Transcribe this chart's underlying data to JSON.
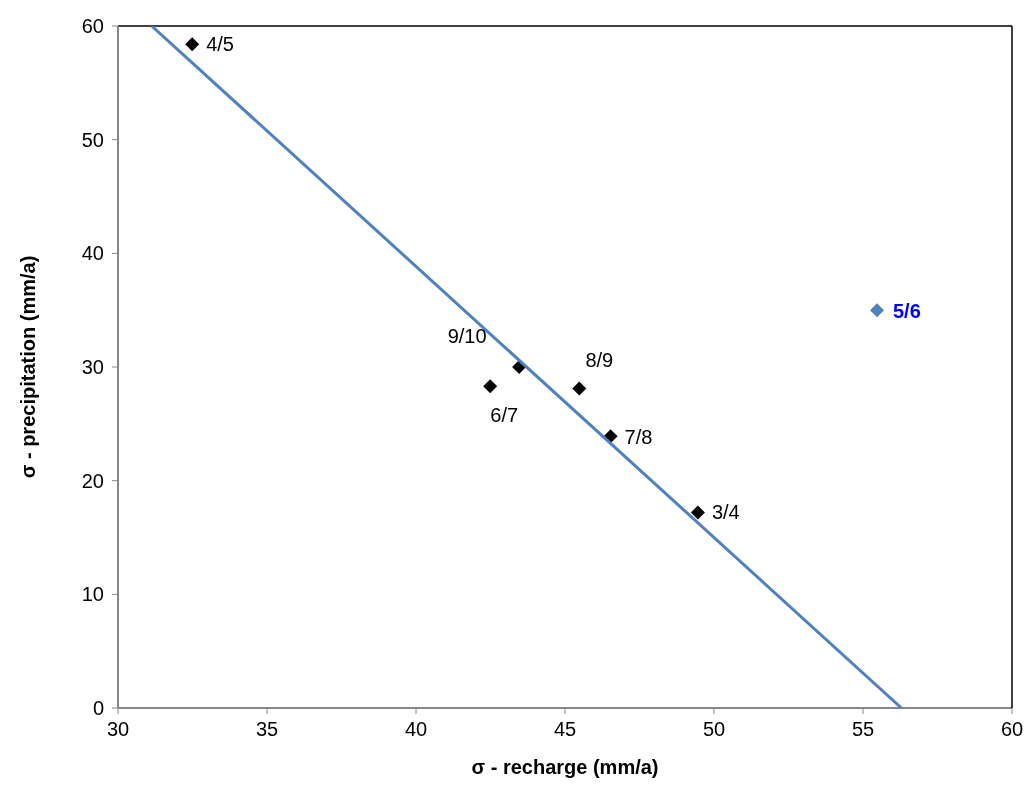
{
  "chart_data": {
    "type": "scatter",
    "xlabel": "σ -  recharge (mm/a)",
    "ylabel": "σ - precipitation (mm/a)",
    "xlim": [
      30,
      60
    ],
    "xticks": [
      30,
      35,
      40,
      45,
      50,
      55,
      60
    ],
    "ylim": [
      0,
      60
    ],
    "yticks": [
      0,
      10,
      20,
      30,
      40,
      50,
      60
    ],
    "grid": false,
    "legend": false,
    "marker": "diamond",
    "series": [
      {
        "name": "3/4",
        "color": "#000000",
        "x": [
          49.46
        ],
        "values": [
          17.2
        ]
      },
      {
        "name": "4/5",
        "color": "#000000",
        "x": [
          32.49
        ],
        "values": [
          58.4
        ]
      },
      {
        "name": "5/6",
        "color": "#4f81bd",
        "x": [
          55.47
        ],
        "values": [
          35.0
        ]
      },
      {
        "name": "6/7",
        "color": "#000000",
        "x": [
          42.49
        ],
        "values": [
          28.3
        ]
      },
      {
        "name": "7/8",
        "color": "#000000",
        "x": [
          46.53
        ],
        "values": [
          23.9
        ]
      },
      {
        "name": "8/9",
        "color": "#000000",
        "x": [
          45.48
        ],
        "values": [
          28.1
        ]
      },
      {
        "name": "9/10",
        "color": "#000000",
        "x": [
          43.46
        ],
        "values": [
          30.0
        ]
      },
      {
        "type": "line",
        "color": "#4f81bd",
        "x": [
          31.13,
          56.29
        ],
        "values": [
          60,
          0
        ],
        "marker": "none",
        "line_style": "solid"
      }
    ]
  }
}
